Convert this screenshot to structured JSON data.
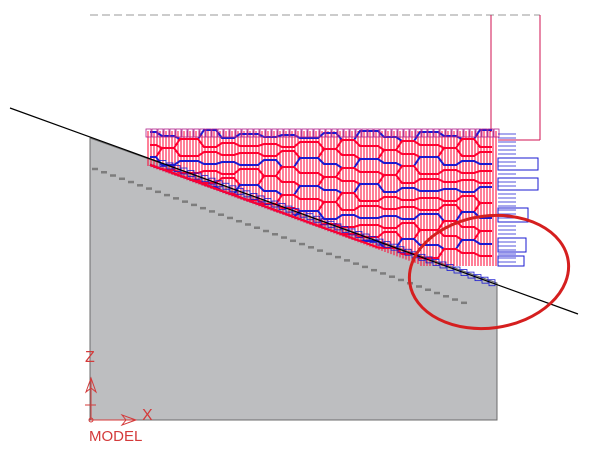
{
  "viewport": {
    "label": "MODEL",
    "axes": {
      "z": "Z",
      "x": "X"
    }
  },
  "colors": {
    "background": "#ffffff",
    "stock": "#bdbec0",
    "stock_edge": "#6b6b6b",
    "cut_line": "#000000",
    "toolpath_primary": "#ff0030",
    "toolpath_secondary": "#1a1ad0",
    "toolpath_mix": "#b0208a",
    "tool_outline": "#d01050",
    "highlight_ellipse": "#d51f1f",
    "axis_indicator": "#d43a3a",
    "boundary_dashed": "#9a9a9a"
  },
  "icons": {
    "axis_triad": "xz-axis-triad-icon",
    "annotation": "ellipse-callout-icon"
  }
}
